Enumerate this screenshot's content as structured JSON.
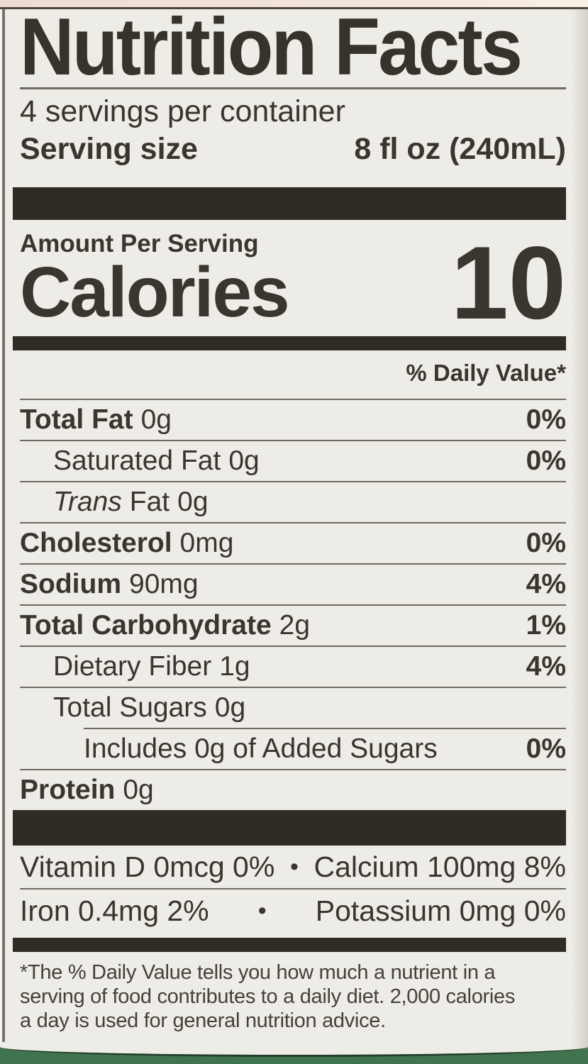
{
  "colors": {
    "label_bg": "#edece6",
    "text": "#3a362f",
    "bar": "#2f2b25",
    "rule": "#6e6a61",
    "top_strip_pink": "#f2e3d8",
    "bottom_band_green": "#40744e"
  },
  "header": {
    "title": "Nutrition Facts",
    "servings_per_container": "4 servings per container",
    "serving_size_label": "Serving size",
    "serving_size_value": "8 fl oz (240mL)"
  },
  "calories": {
    "amount_per_serving_label": "Amount Per Serving",
    "label": "Calories",
    "value": "10"
  },
  "daily_value_header": "% Daily Value*",
  "nutrients": [
    {
      "name": "Total Fat",
      "amount": "0g",
      "dv": "0%"
    },
    {
      "name": "Saturated Fat",
      "amount": "0g",
      "dv": "0%"
    },
    {
      "name_italic": "Trans",
      "name_rest": "Fat",
      "amount": "0g",
      "dv": ""
    },
    {
      "name": "Cholesterol",
      "amount": "0mg",
      "dv": "0%"
    },
    {
      "name": "Sodium",
      "amount": "90mg",
      "dv": "4%"
    },
    {
      "name": "Total Carbohydrate",
      "amount": "2g",
      "dv": "1%"
    },
    {
      "name": "Dietary Fiber",
      "amount": "1g",
      "dv": "4%"
    },
    {
      "name": "Total Sugars",
      "amount": "0g",
      "dv": ""
    },
    {
      "name": "Includes 0g of Added Sugars",
      "amount": "",
      "dv": "0%"
    },
    {
      "name": "Protein",
      "amount": "0g",
      "dv": ""
    }
  ],
  "micros": [
    {
      "left": "Vitamin D 0mcg 0%",
      "bullet": "•",
      "right": "Calcium 100mg 8%"
    },
    {
      "left": "Iron 0.4mg 2%",
      "bullet": "•",
      "right": "Potassium 0mg 0%"
    }
  ],
  "footnote_lines": [
    "*The % Daily Value tells you how much a nutrient in a",
    "serving of food contributes to a daily diet. 2,000 calories",
    "a day is used for general nutrition advice."
  ]
}
